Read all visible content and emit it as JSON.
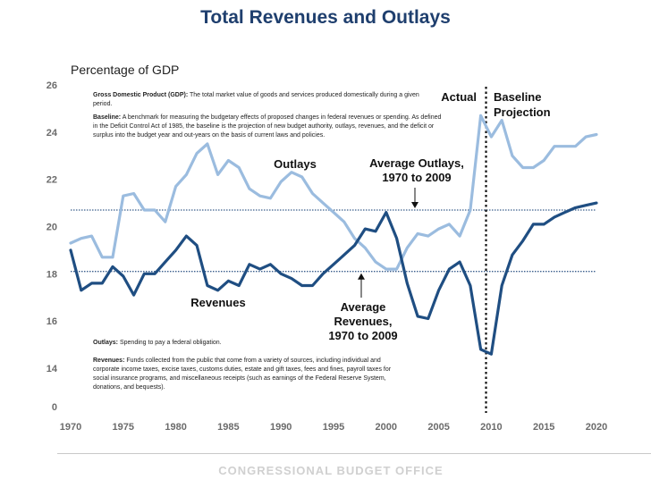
{
  "chart_data": {
    "type": "line",
    "title": "Total Revenues and Outlays",
    "ylabel": "Percentage of GDP",
    "xlabel": "",
    "xlim": [
      1970,
      2020
    ],
    "ylim": [
      0,
      26
    ],
    "y_axis_break": [
      0,
      14
    ],
    "x_ticks": [
      1970,
      1975,
      1980,
      1985,
      1990,
      1995,
      2000,
      2005,
      2010,
      2015,
      2020
    ],
    "y_ticks": [
      0,
      14,
      16,
      18,
      20,
      22,
      24,
      26
    ],
    "grid": false,
    "series": [
      {
        "name": "Outlays",
        "color": "#9bbcdf",
        "x": [
          1970,
          1971,
          1972,
          1973,
          1974,
          1975,
          1976,
          1977,
          1978,
          1979,
          1980,
          1981,
          1982,
          1983,
          1984,
          1985,
          1986,
          1987,
          1988,
          1989,
          1990,
          1991,
          1992,
          1993,
          1994,
          1995,
          1996,
          1997,
          1998,
          1999,
          2000,
          2001,
          2002,
          2003,
          2004,
          2005,
          2006,
          2007,
          2008,
          2009,
          2010,
          2011,
          2012,
          2013,
          2014,
          2015,
          2016,
          2017,
          2018,
          2019,
          2020
        ],
        "values": [
          19.3,
          19.5,
          19.6,
          18.7,
          18.7,
          21.3,
          21.4,
          20.7,
          20.7,
          20.2,
          21.7,
          22.2,
          23.1,
          23.5,
          22.2,
          22.8,
          22.5,
          21.6,
          21.3,
          21.2,
          21.9,
          22.3,
          22.1,
          21.4,
          21.0,
          20.6,
          20.2,
          19.5,
          19.1,
          18.5,
          18.2,
          18.2,
          19.1,
          19.7,
          19.6,
          19.9,
          20.1,
          19.6,
          20.7,
          24.7,
          23.8,
          24.5,
          23.0,
          22.5,
          22.5,
          22.8,
          23.4,
          23.4,
          23.4,
          23.8,
          23.9
        ]
      },
      {
        "name": "Revenues",
        "color": "#1f4e82",
        "x": [
          1970,
          1971,
          1972,
          1973,
          1974,
          1975,
          1976,
          1977,
          1978,
          1979,
          1980,
          1981,
          1982,
          1983,
          1984,
          1985,
          1986,
          1987,
          1988,
          1989,
          1990,
          1991,
          1992,
          1993,
          1994,
          1995,
          1996,
          1997,
          1998,
          1999,
          2000,
          2001,
          2002,
          2003,
          2004,
          2005,
          2006,
          2007,
          2008,
          2009,
          2010,
          2011,
          2012,
          2013,
          2014,
          2015,
          2016,
          2017,
          2018,
          2019,
          2020
        ],
        "values": [
          19.0,
          17.3,
          17.6,
          17.6,
          18.3,
          17.9,
          17.1,
          18.0,
          18.0,
          18.5,
          19.0,
          19.6,
          19.2,
          17.5,
          17.3,
          17.7,
          17.5,
          18.4,
          18.2,
          18.4,
          18.0,
          17.8,
          17.5,
          17.5,
          18.0,
          18.4,
          18.8,
          19.2,
          19.9,
          19.8,
          20.6,
          19.5,
          17.6,
          16.2,
          16.1,
          17.3,
          18.2,
          18.5,
          17.5,
          14.8,
          14.6,
          17.5,
          18.8,
          19.4,
          20.1,
          20.1,
          20.4,
          20.6,
          20.8,
          20.9,
          21.0
        ]
      }
    ],
    "averages": [
      {
        "name": "Average Outlays, 1970 to 2009",
        "value": 20.7
      },
      {
        "name": "Average Revenues, 1970 to 2009",
        "value": 18.1
      }
    ],
    "divider_year": 2009.5,
    "annotations": {
      "outlays": "Outlays",
      "revenues": "Revenues",
      "avg_outlays_l1": "Average Outlays,",
      "avg_outlays_l2": "1970 to 2009",
      "avg_revenues_l1": "Average",
      "avg_revenues_l2": "Revenues,",
      "avg_revenues_l3": "1970 to 2009",
      "actual": "Actual",
      "baseline_l1": "Baseline",
      "baseline_l2": "Projection"
    }
  },
  "notes": {
    "gdp_term": "Gross Domestic Product (GDP):",
    "gdp_text": "The total market value of goods and services produced domestically during a given period.",
    "baseline_term": "Baseline:",
    "baseline_text": "A benchmark for measuring the budgetary effects of proposed changes in federal revenues or spending. As defined in the Deficit Control Act of 1985, the baseline is the projection of new budget authority, outlays, revenues, and the deficit or surplus into the budget year and out-years on the basis of current laws and policies.",
    "outlays_term": "Outlays:",
    "outlays_text": "Spending to pay a federal obligation.",
    "revenues_term": "Revenues:",
    "revenues_text": "Funds collected from the public that come from a variety of sources, including individual and corporate income taxes, excise taxes, customs duties, estate and gift taxes, fees and fines, payroll taxes for social insurance programs, and miscellaneous receipts (such as earnings of the Federal Reserve System, donations, and bequests)."
  },
  "footer": "CONGRESSIONAL BUDGET OFFICE"
}
